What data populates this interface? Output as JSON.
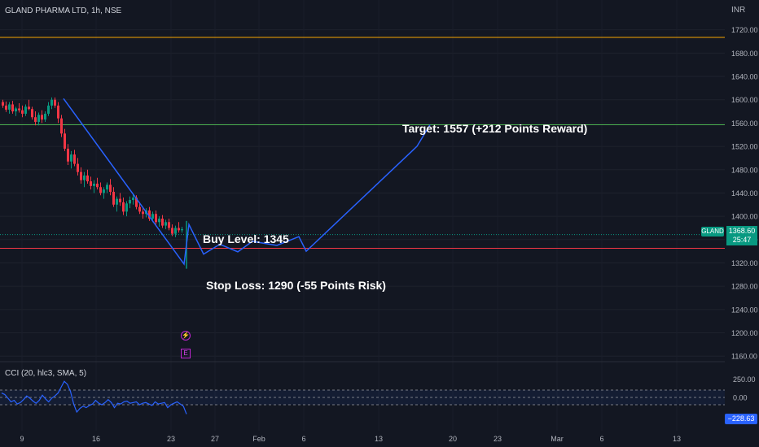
{
  "header": {
    "title": "GLAND PHARMA LTD, 1h, NSE",
    "currency": "INR"
  },
  "colors": {
    "background": "#131722",
    "up": "#089981",
    "down": "#f23645",
    "projection": "#2962ff",
    "target_line": "#4caf50",
    "stop_line": "#f23645",
    "orange_line": "#f7a600",
    "cci_tag": "#2962ff"
  },
  "annotations": {
    "target": "Target: 1557 (+212 Points Reward)",
    "buy": "Buy Level: 1345",
    "stop": "Stop Loss: 1290 (-55 Points Risk)"
  },
  "price_tag": {
    "symbol": "GLAND",
    "price": "1368.60",
    "countdown": "25:47"
  },
  "events": {
    "split": "⚡",
    "earnings": "E"
  },
  "indicator": {
    "title": "CCI (20, hlc3, SMA, 5)",
    "last_value": "−228.63"
  },
  "chart_data": {
    "type": "candlestick",
    "title": "GLAND PHARMA LTD, 1h, NSE",
    "y_axis": {
      "ticks": [
        1160,
        1200,
        1240,
        1280,
        1320,
        1360,
        1400,
        1440,
        1480,
        1520,
        1560,
        1600,
        1640,
        1680,
        1720
      ],
      "range": [
        1147,
        1755
      ],
      "unit": "INR"
    },
    "x_axis": {
      "ticks": [
        "9",
        "16",
        "23",
        "27",
        "Feb",
        "6",
        "13",
        "20",
        "23",
        "Mar",
        "6",
        "13"
      ]
    },
    "last_price": 1368.6,
    "horizontal_lines": [
      {
        "name": "orange",
        "price": 1707
      },
      {
        "name": "target",
        "price": 1557
      },
      {
        "name": "stop",
        "price": 1345
      },
      {
        "name": "current",
        "price": 1368.6
      }
    ],
    "candles": [
      [
        1596,
        1600,
        1586,
        1590
      ],
      [
        1590,
        1597,
        1579,
        1583
      ],
      [
        1583,
        1596,
        1576,
        1592
      ],
      [
        1592,
        1598,
        1576,
        1580
      ],
      [
        1580,
        1588,
        1572,
        1585
      ],
      [
        1585,
        1594,
        1578,
        1582
      ],
      [
        1582,
        1590,
        1570,
        1576
      ],
      [
        1576,
        1592,
        1572,
        1588
      ],
      [
        1588,
        1600,
        1582,
        1584
      ],
      [
        1584,
        1588,
        1566,
        1570
      ],
      [
        1570,
        1580,
        1556,
        1562
      ],
      [
        1562,
        1578,
        1556,
        1574
      ],
      [
        1574,
        1582,
        1560,
        1566
      ],
      [
        1566,
        1580,
        1562,
        1576
      ],
      [
        1576,
        1596,
        1572,
        1590
      ],
      [
        1590,
        1604,
        1584,
        1600
      ],
      [
        1600,
        1604,
        1586,
        1590
      ],
      [
        1590,
        1596,
        1560,
        1568
      ],
      [
        1568,
        1574,
        1536,
        1542
      ],
      [
        1542,
        1550,
        1512,
        1516
      ],
      [
        1516,
        1524,
        1488,
        1494
      ],
      [
        1494,
        1512,
        1482,
        1506
      ],
      [
        1506,
        1514,
        1486,
        1490
      ],
      [
        1490,
        1500,
        1470,
        1476
      ],
      [
        1476,
        1484,
        1456,
        1462
      ],
      [
        1462,
        1476,
        1450,
        1470
      ],
      [
        1470,
        1480,
        1456,
        1460
      ],
      [
        1460,
        1468,
        1446,
        1452
      ],
      [
        1452,
        1462,
        1440,
        1456
      ],
      [
        1456,
        1466,
        1446,
        1450
      ],
      [
        1450,
        1458,
        1436,
        1440
      ],
      [
        1440,
        1450,
        1430,
        1446
      ],
      [
        1446,
        1458,
        1440,
        1454
      ],
      [
        1454,
        1464,
        1436,
        1442
      ],
      [
        1442,
        1450,
        1416,
        1420
      ],
      [
        1420,
        1434,
        1408,
        1430
      ],
      [
        1430,
        1440,
        1418,
        1424
      ],
      [
        1424,
        1432,
        1402,
        1408
      ],
      [
        1408,
        1426,
        1400,
        1422
      ],
      [
        1422,
        1434,
        1414,
        1428
      ],
      [
        1428,
        1438,
        1420,
        1432
      ],
      [
        1432,
        1436,
        1412,
        1416
      ],
      [
        1416,
        1424,
        1404,
        1408
      ],
      [
        1408,
        1416,
        1396,
        1404
      ],
      [
        1404,
        1414,
        1398,
        1410
      ],
      [
        1410,
        1416,
        1392,
        1396
      ],
      [
        1396,
        1408,
        1390,
        1404
      ],
      [
        1404,
        1410,
        1386,
        1390
      ],
      [
        1390,
        1400,
        1382,
        1396
      ],
      [
        1396,
        1402,
        1380,
        1384
      ],
      [
        1384,
        1394,
        1378,
        1390
      ],
      [
        1390,
        1396,
        1376,
        1380
      ],
      [
        1380,
        1386,
        1366,
        1370
      ],
      [
        1370,
        1384,
        1364,
        1380
      ],
      [
        1380,
        1390,
        1372,
        1376
      ],
      [
        1376,
        1382,
        1372,
        1378
      ]
    ],
    "spike": {
      "high": 1392,
      "low": 1310,
      "close": 1368.6
    },
    "projection_path": [
      {
        "label": "start",
        "price": 1602
      },
      {
        "label": "low",
        "price": 1318
      },
      {
        "label": "bounce",
        "price": 1386
      },
      {
        "label": "dip",
        "price": 1335
      },
      {
        "label": "up",
        "price": 1352
      },
      {
        "label": "dip2",
        "price": 1339
      },
      {
        "label": "up2",
        "price": 1357
      },
      {
        "label": "dip3",
        "price": 1350
      },
      {
        "label": "up3",
        "price": 1365
      },
      {
        "label": "dip4",
        "price": 1340
      },
      {
        "label": "rally",
        "price": 1520
      },
      {
        "label": "target",
        "price": 1557
      }
    ],
    "cci": {
      "name": "CCI (20, hlc3, SMA, 5)",
      "levels": [
        100,
        0,
        -100
      ],
      "ticks": [
        250,
        0
      ],
      "last": -228.63,
      "values": [
        60,
        40,
        -10,
        -60,
        -40,
        -90,
        -70,
        -30,
        20,
        -10,
        -50,
        -80,
        -40,
        30,
        -20,
        -60,
        -10,
        20,
        60,
        140,
        220,
        180,
        80,
        -90,
        -200,
        -150,
        -120,
        -140,
        -110,
        -90,
        -40,
        -80,
        -100,
        -70,
        -30,
        -70,
        -140,
        -80,
        -90,
        -60,
        -50,
        -80,
        -70,
        -60,
        -100,
        -80,
        -70,
        -90,
        -110,
        -60,
        -90,
        -80,
        -70,
        -140,
        -100,
        -80,
        -60,
        -90,
        -120,
        -228
      ]
    }
  }
}
